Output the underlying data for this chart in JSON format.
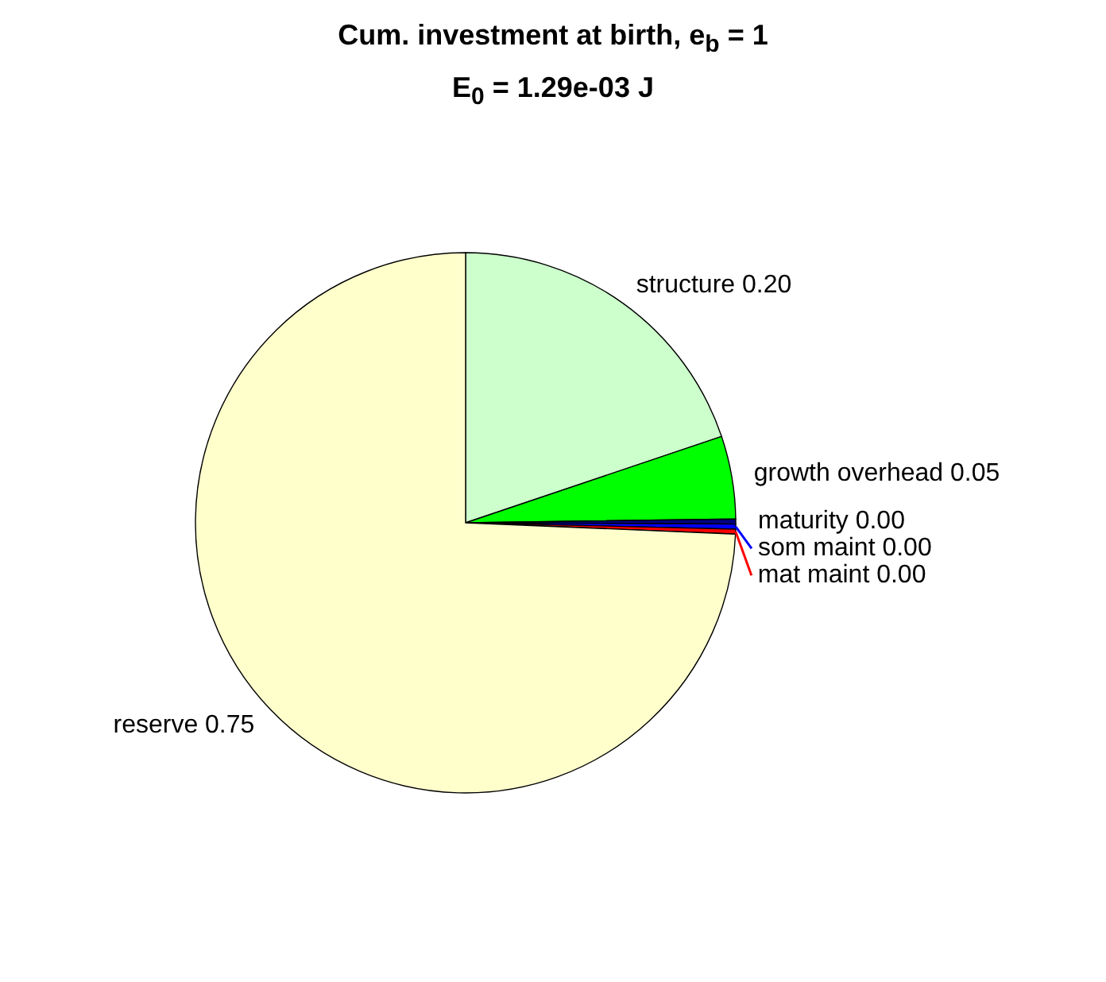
{
  "chart_data": {
    "type": "pie",
    "title": "Cum. investment at birth, e$_{b}$ = 1",
    "subtitle": "E$_{0}$ = 1.29e-03 J",
    "categories": [
      "structure",
      "growth overhead",
      "maturity",
      "som maint",
      "mat maint",
      "reserve"
    ],
    "values": [
      0.2,
      0.05,
      0.003,
      0.003,
      0.003,
      0.75
    ],
    "value_labels": [
      "0.20",
      "0.05",
      "0.00",
      "0.00",
      "0.00",
      "0.75"
    ],
    "colors": [
      "#ccffcc",
      "#00ff00",
      "#000080",
      "#0000ff",
      "#ff0000",
      "#ffffcc"
    ],
    "legend": false
  }
}
